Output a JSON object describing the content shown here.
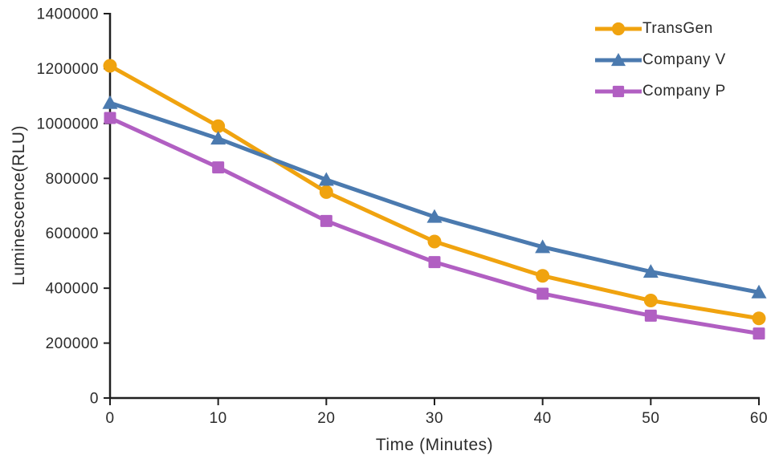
{
  "chart_data": {
    "type": "line",
    "title": "",
    "xlabel": "Time (Minutes)",
    "ylabel": "Luminescence(RLU)",
    "x": [
      0,
      10,
      20,
      30,
      40,
      50,
      60
    ],
    "x_ticks": [
      0,
      10,
      20,
      30,
      40,
      50,
      60
    ],
    "y_ticks": [
      0,
      200000,
      400000,
      600000,
      800000,
      1000000,
      1200000,
      1400000
    ],
    "xlim": [
      0,
      60
    ],
    "ylim": [
      0,
      1400000
    ],
    "grid": false,
    "legend_position": "top-right",
    "background_color": "#FFFFFF",
    "axis_color": "#1f1f1f",
    "text_color": "#2b2b2b",
    "series": [
      {
        "name": "TransGen",
        "color": "#F0A30F",
        "marker": "circle",
        "values": [
          1210000,
          990000,
          750000,
          570000,
          445000,
          355000,
          290000
        ]
      },
      {
        "name": "Company V",
        "color": "#4B7AAF",
        "marker": "triangle",
        "values": [
          1075000,
          945000,
          795000,
          660000,
          550000,
          460000,
          385000
        ]
      },
      {
        "name": "Company P",
        "color": "#B15FC2",
        "marker": "square",
        "values": [
          1020000,
          840000,
          645000,
          495000,
          380000,
          300000,
          235000
        ]
      }
    ]
  }
}
